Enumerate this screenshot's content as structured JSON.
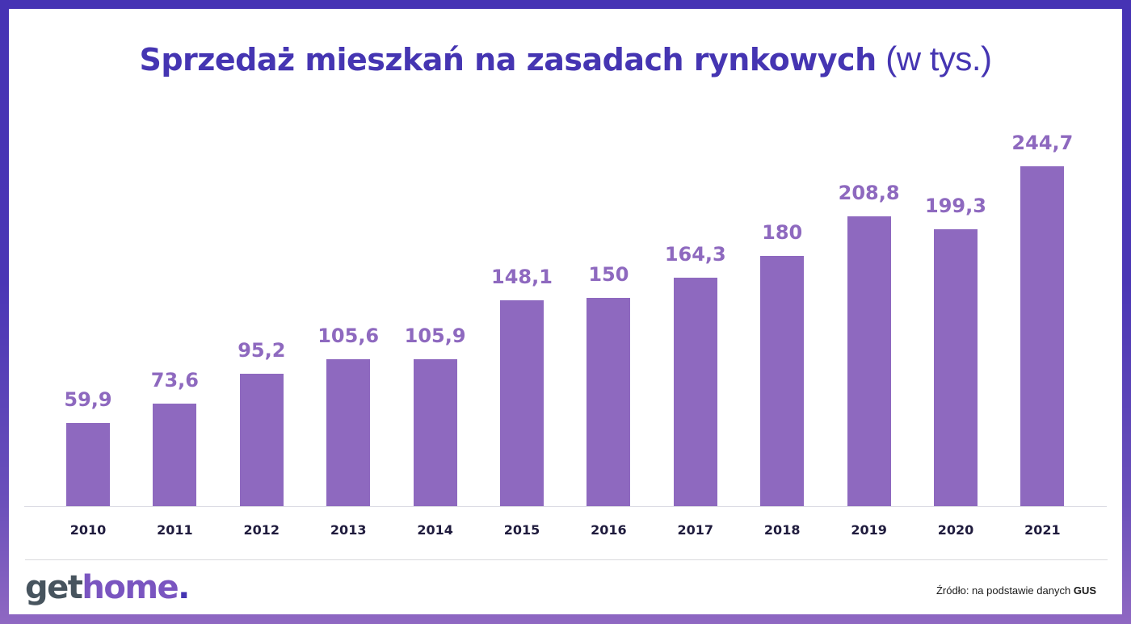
{
  "header": {
    "title_bold": "Sprzedaż mieszkań na zasadach rynkowych",
    "title_light": "(w tys.)"
  },
  "footer": {
    "logo_get": "get",
    "logo_home": "home",
    "logo_dot": ".",
    "source_prefix": "Źródło: na podstawie danych",
    "source_bold": "GUS"
  },
  "colors": {
    "bar": "#8e69bf",
    "value_label": "#8e69bf",
    "year_label": "#1f1b3d",
    "title": "#4535b2",
    "frame_top": "#4633b4",
    "frame_bottom": "#8f68c2"
  },
  "chart_data": {
    "type": "bar",
    "title": "Sprzedaż mieszkań na zasadach rynkowych (w tys.)",
    "xlabel": "",
    "ylabel": "",
    "categories": [
      "2010",
      "2011",
      "2012",
      "2013",
      "2014",
      "2015",
      "2016",
      "2017",
      "2018",
      "2019",
      "2020",
      "2021"
    ],
    "values": [
      59.9,
      73.6,
      95.2,
      105.6,
      105.9,
      148.1,
      150,
      164.3,
      180,
      208.8,
      199.3,
      244.7
    ],
    "value_labels": [
      "59,9",
      "73,6",
      "95,2",
      "105,6",
      "105,9",
      "148,1",
      "150",
      "164,3",
      "180",
      "208,8",
      "199,3",
      "244,7"
    ],
    "ylim": [
      0,
      250
    ],
    "grid": false,
    "legend": null,
    "data_labels": true,
    "source": "Źródło: na podstawie danych GUS"
  }
}
